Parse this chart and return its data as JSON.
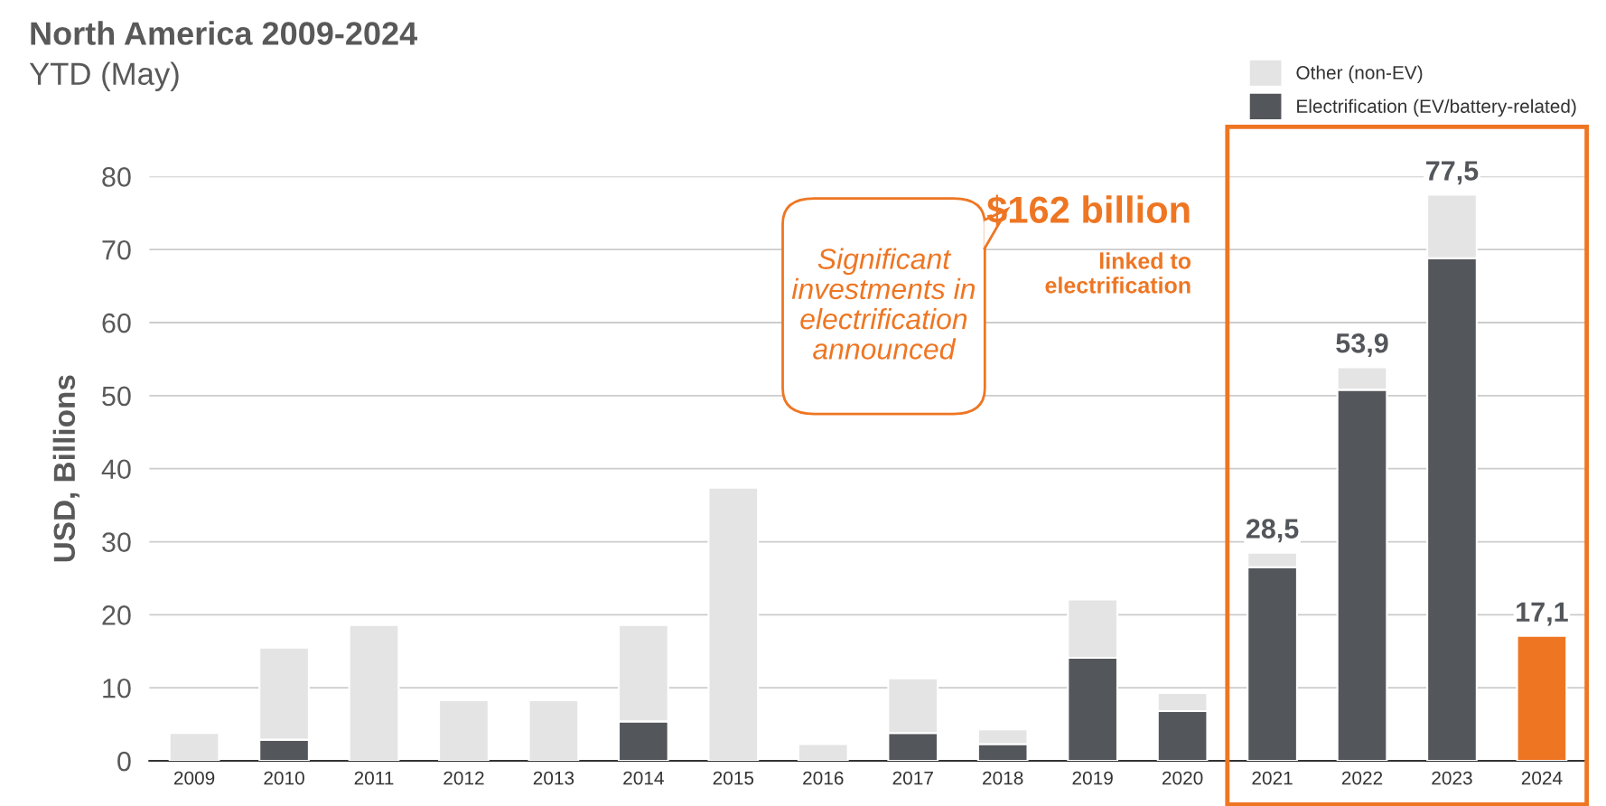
{
  "chart_data": {
    "type": "bar",
    "title": "North America 2009-2024",
    "subtitle": "YTD (May)",
    "ylabel": "USD, Billions",
    "categories": [
      "2009",
      "2010",
      "2011",
      "2012",
      "2013",
      "2014",
      "2015",
      "2016",
      "2017",
      "2018",
      "2019",
      "2020",
      "2021",
      "2022",
      "2023",
      "2024"
    ],
    "stacked": true,
    "series": [
      {
        "name": "Electrification (EV/battery-related)",
        "color": "#53565a",
        "colors": [
          "#53565a",
          "#53565a",
          "#53565a",
          "#53565a",
          "#53565a",
          "#53565a",
          "#53565a",
          "#53565a",
          "#53565a",
          "#53565a",
          "#53565a",
          "#53565a",
          "#53565a",
          "#53565a",
          "#53565a",
          "#ee7623"
        ],
        "values": [
          null,
          2.9,
          null,
          null,
          null,
          5.4,
          null,
          null,
          3.8,
          2.3,
          14.1,
          6.8,
          26.5,
          50.8,
          68.8,
          17.1
        ]
      },
      {
        "name": "Other (non-EV)",
        "color": "#e4e4e4",
        "values": [
          3.8,
          12.6,
          18.6,
          8.3,
          8.3,
          13.2,
          37.4,
          2.3,
          7.5,
          2.0,
          8.0,
          2.5,
          2.0,
          3.1,
          8.7,
          null
        ]
      }
    ],
    "totals": [
      null,
      null,
      null,
      null,
      null,
      null,
      null,
      null,
      null,
      null,
      null,
      null,
      "28,5",
      "53,9",
      "77,5",
      "17,1"
    ],
    "ylim": [
      0,
      80
    ],
    "yticks": [
      0,
      10,
      20,
      30,
      40,
      50,
      60,
      70,
      80
    ],
    "grid": "y",
    "legend": "top right",
    "annotations": [
      "Significant investments in electrification announced",
      "$162 billion",
      "linked to electrification"
    ]
  }
}
